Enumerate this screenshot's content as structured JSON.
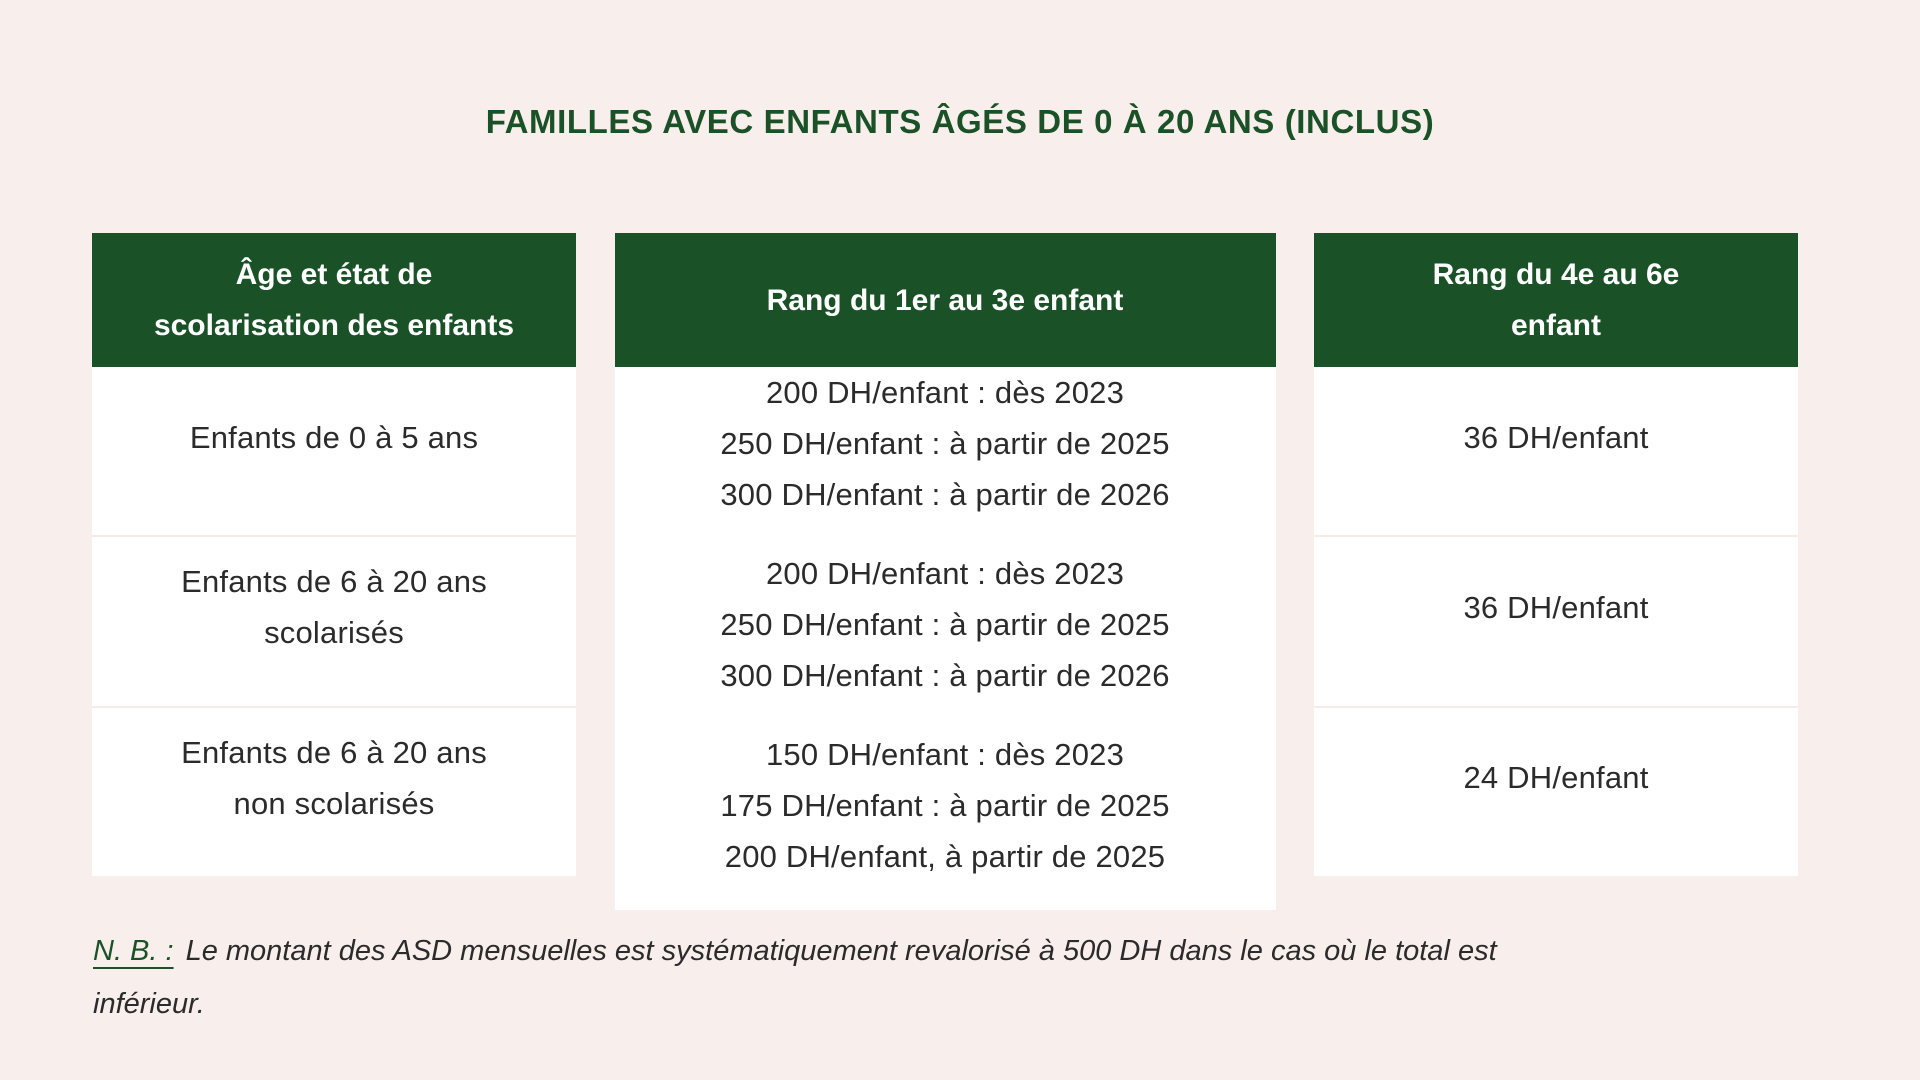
{
  "page": {
    "title": "FAMILLES AVEC ENFANTS ÂGÉS DE 0 À 20 ANS (INCLUS)"
  },
  "colors": {
    "background": "#f8eeec",
    "accent_green": "#1a5127",
    "header_text": "#ffffff",
    "cell_background": "#ffffff",
    "body_text": "#2b2b2b",
    "row_separator": "#f5ebe9"
  },
  "table": {
    "columns": [
      {
        "header_lines": [
          "Âge et état de",
          "scolarisation des enfants"
        ]
      },
      {
        "header_lines": [
          "Rang du 1er au 3e enfant"
        ]
      },
      {
        "header_lines": [
          "Rang du 4e au 6e",
          "enfant"
        ]
      }
    ],
    "rows": [
      {
        "age_group_lines": [
          "Enfants de 0 à 5 ans"
        ],
        "rank_1_3_lines": [
          "200 DH/enfant : dès 2023",
          "250 DH/enfant : à partir de 2025",
          "300 DH/enfant : à partir de 2026"
        ],
        "rank_4_6": "36 DH/enfant"
      },
      {
        "age_group_lines": [
          "Enfants de 6 à 20 ans",
          "scolarisés"
        ],
        "rank_1_3_lines": [
          "200 DH/enfant : dès 2023",
          "250 DH/enfant : à partir de 2025",
          "300 DH/enfant : à partir de 2026"
        ],
        "rank_4_6": "36 DH/enfant"
      },
      {
        "age_group_lines": [
          "Enfants de 6 à 20 ans",
          "non scolarisés"
        ],
        "rank_1_3_lines": [
          "150 DH/enfant : dès 2023",
          "175 DH/enfant : à partir de 2025",
          "200 DH/enfant, à partir de 2025"
        ],
        "rank_4_6": "24 DH/enfant"
      }
    ]
  },
  "note": {
    "label": "N. B. :",
    "text_lines": [
      "Le montant des ASD mensuelles est systématiquement revalorisé à 500 DH dans le cas où le total est",
      "inférieur."
    ]
  }
}
